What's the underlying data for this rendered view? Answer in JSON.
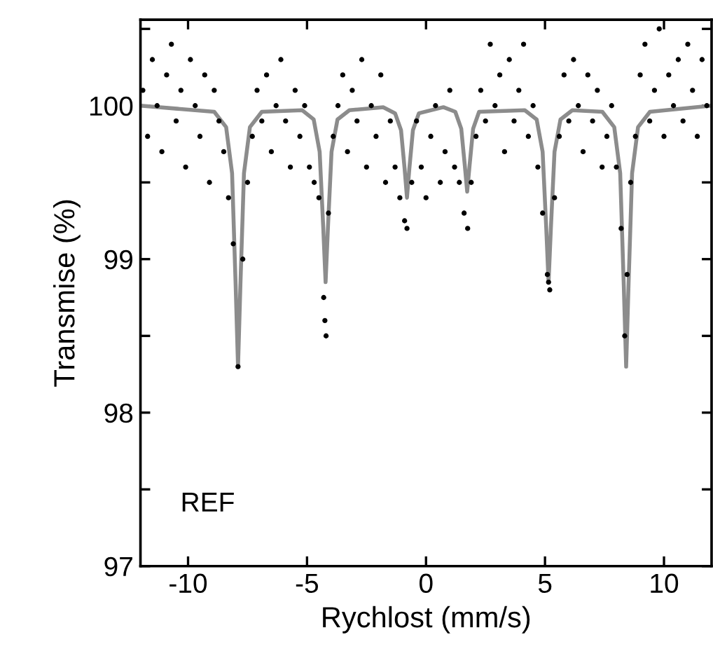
{
  "chart_data": {
    "type": "scatter",
    "xlabel": "Rychlost (mm/s)",
    "ylabel": "Transmise (%)",
    "xlim": [
      -12,
      12
    ],
    "xticks": [
      -10,
      -5,
      0,
      5,
      10
    ],
    "ylim": [
      97,
      100.56
    ],
    "yticks": [
      97,
      {
        "value": 97.5,
        "label": null
      },
      98,
      {
        "value": 98.5,
        "label": null
      },
      99,
      {
        "value": 99.5,
        "label": null
      },
      100,
      {
        "value": 100.5,
        "label": null
      }
    ],
    "grid": false,
    "legend": false,
    "annotations": [
      {
        "text": "REF"
      }
    ],
    "series": [
      {
        "color": "#000000",
        "marker": "circle",
        "x": [
          -11.9,
          -11.7,
          -11.5,
          -11.3,
          -11.1,
          -10.9,
          -10.7,
          -10.5,
          -10.3,
          -10.1,
          -9.9,
          -9.7,
          -9.5,
          -9.3,
          -9.1,
          -8.9,
          -8.7,
          -8.5,
          -8.3,
          -8.1,
          -7.9,
          -7.7,
          -7.5,
          -7.3,
          -7.1,
          -6.9,
          -6.7,
          -6.5,
          -6.3,
          -6.1,
          -5.9,
          -5.7,
          -5.5,
          -5.3,
          -5.1,
          -4.9,
          -4.7,
          -4.5,
          -4.3,
          -4.25,
          -4.2,
          -4.1,
          -3.9,
          -3.7,
          -3.5,
          -3.3,
          -3.1,
          -2.9,
          -2.7,
          -2.5,
          -2.3,
          -2.1,
          -1.9,
          -1.7,
          -1.5,
          -1.3,
          -1.1,
          -0.9,
          -0.8,
          -0.6,
          -0.4,
          -0.2,
          0.0,
          0.2,
          0.4,
          0.6,
          0.8,
          1.0,
          1.2,
          1.4,
          1.6,
          1.75,
          1.9,
          2.1,
          2.3,
          2.5,
          2.7,
          2.9,
          3.1,
          3.3,
          3.5,
          3.7,
          3.9,
          4.1,
          4.3,
          4.5,
          4.7,
          4.9,
          5.1,
          5.15,
          5.2,
          5.4,
          5.6,
          5.8,
          6.0,
          6.2,
          6.4,
          6.6,
          6.8,
          7.0,
          7.2,
          7.4,
          7.6,
          7.8,
          8.0,
          8.2,
          8.35,
          8.45,
          8.6,
          8.8,
          9.0,
          9.2,
          9.4,
          9.6,
          9.8,
          10.0,
          10.2,
          10.4,
          10.6,
          10.8,
          11.0,
          11.2,
          11.4,
          11.6,
          11.8
        ],
        "values": [
          100.1,
          99.8,
          100.3,
          100.0,
          99.7,
          100.2,
          100.4,
          99.9,
          100.1,
          99.6,
          100.3,
          100.0,
          99.8,
          100.2,
          99.5,
          100.1,
          99.9,
          99.7,
          99.4,
          99.1,
          98.3,
          99.0,
          99.5,
          99.8,
          100.1,
          99.9,
          100.2,
          99.7,
          100.0,
          100.3,
          99.9,
          99.6,
          100.1,
          99.8,
          100.0,
          99.6,
          99.5,
          99.4,
          98.75,
          98.6,
          98.5,
          99.3,
          99.8,
          100.0,
          100.2,
          99.7,
          100.1,
          99.9,
          100.3,
          99.6,
          100.0,
          99.8,
          100.2,
          99.5,
          99.9,
          99.6,
          99.4,
          99.25,
          99.2,
          99.5,
          99.9,
          99.6,
          99.4,
          99.8,
          100.0,
          99.5,
          99.7,
          100.1,
          99.6,
          99.5,
          99.3,
          99.2,
          99.5,
          99.8,
          100.1,
          99.9,
          100.4,
          100.0,
          100.2,
          99.7,
          100.3,
          99.9,
          100.1,
          100.4,
          99.8,
          100.0,
          99.6,
          99.3,
          98.9,
          98.85,
          98.8,
          99.4,
          99.8,
          100.2,
          99.9,
          100.3,
          100.0,
          99.7,
          100.2,
          99.9,
          100.1,
          99.6,
          99.8,
          100.0,
          99.6,
          99.2,
          98.5,
          98.9,
          99.5,
          99.8,
          100.2,
          100.4,
          99.9,
          100.1,
          100.5,
          99.8,
          100.2,
          100.0,
          100.3,
          99.9,
          100.4,
          100.1,
          99.8,
          100.3,
          100.0
        ]
      },
      {
        "type": "line",
        "color": "#8c8c8c",
        "marker": "none",
        "line_style": "solid",
        "x": [
          -12,
          -8.9,
          -8.4,
          -8.15,
          -8.0,
          -7.9,
          -7.8,
          -7.65,
          -7.4,
          -6.9,
          -5.2,
          -4.72,
          -4.47,
          -4.32,
          -4.22,
          -4.12,
          -3.97,
          -3.72,
          -3.22,
          -1.8,
          -1.3,
          -1.05,
          -0.9,
          -0.8,
          -0.7,
          -0.55,
          -0.3,
          0.73,
          1.23,
          1.48,
          1.63,
          1.73,
          1.83,
          1.98,
          2.23,
          4.15,
          4.65,
          4.9,
          5.05,
          5.15,
          5.25,
          5.4,
          5.65,
          6.15,
          7.41,
          7.91,
          8.16,
          8.31,
          8.41,
          8.51,
          8.66,
          8.91,
          9.41,
          12
        ],
        "values": [
          100,
          99.96,
          99.86,
          99.56,
          98.83,
          98.3,
          98.83,
          99.56,
          99.86,
          99.96,
          99.97,
          99.91,
          99.7,
          99.21,
          98.85,
          99.21,
          99.7,
          99.91,
          99.97,
          99.99,
          99.95,
          99.84,
          99.59,
          99.4,
          99.59,
          99.84,
          99.95,
          99.99,
          99.96,
          99.85,
          99.61,
          99.44,
          99.61,
          99.85,
          99.96,
          99.97,
          99.91,
          99.7,
          99.21,
          98.85,
          99.21,
          99.7,
          99.91,
          99.97,
          99.96,
          99.86,
          99.56,
          98.83,
          98.3,
          98.83,
          99.56,
          99.86,
          99.96,
          100
        ]
      }
    ]
  }
}
